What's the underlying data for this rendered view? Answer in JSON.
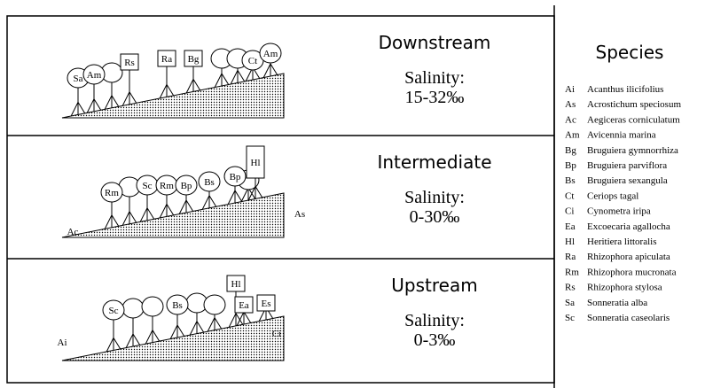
{
  "panels": [
    {
      "zone": "Downstream",
      "salinity_label": "Salinity:",
      "salinity": "15-32‰",
      "trees": [
        "Sa",
        "Am",
        "Rs",
        "Ra",
        "Bg",
        "Ct",
        "Am"
      ]
    },
    {
      "zone": "Intermediate",
      "salinity_label": "Salinity:",
      "salinity": "0-30‰",
      "trees": [
        "Rm",
        "Sc",
        "Rm",
        "Bp",
        "Bs",
        "Bp",
        "Hl",
        "As",
        "Ac"
      ]
    },
    {
      "zone": "Upstream",
      "salinity_label": "Salinity:",
      "salinity": "0-3‰",
      "trees": [
        "Sc",
        "Bs",
        "Hl",
        "Ea",
        "Es",
        "Ci",
        "Ai"
      ]
    }
  ],
  "legend": {
    "title": "Species",
    "items": [
      {
        "code": "Ai",
        "name": "Acanthus ilicifolius"
      },
      {
        "code": "As",
        "name": "Acrostichum speciosum"
      },
      {
        "code": "Ac",
        "name": "Aegiceras corniculatum"
      },
      {
        "code": "Am",
        "name": "Avicennia marina"
      },
      {
        "code": "Bg",
        "name": "Bruguiera gymnorrhiza"
      },
      {
        "code": "Bp",
        "name": "Bruguiera parviflora"
      },
      {
        "code": "Bs",
        "name": "Bruguiera sexangula"
      },
      {
        "code": "Ct",
        "name": "Ceriops tagal"
      },
      {
        "code": "Ci",
        "name": "Cynometra iripa"
      },
      {
        "code": "Ea",
        "name": "Excoecaria agallocha"
      },
      {
        "code": "Hl",
        "name": "Heritiera littoralis"
      },
      {
        "code": "Ra",
        "name": "Rhizophora apiculata"
      },
      {
        "code": "Rm",
        "name": "Rhizophora mucronata"
      },
      {
        "code": "Rs",
        "name": "Rhizophora stylosa"
      },
      {
        "code": "Sa",
        "name": "Sonneratia alba"
      },
      {
        "code": "Sc",
        "name": "Sonneratia caseolaris"
      }
    ]
  }
}
